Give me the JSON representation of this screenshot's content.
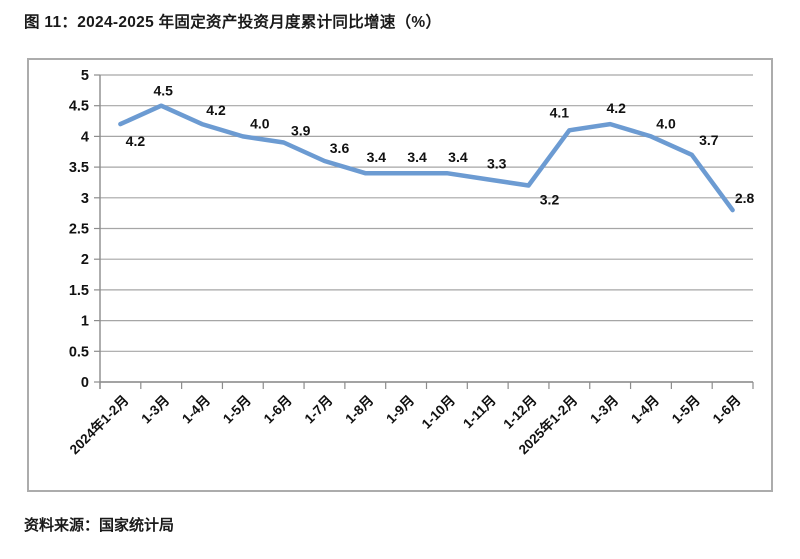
{
  "title": "图 11：2024-2025 年固定资产投资月度累计同比增速（%）",
  "source": "资料来源：国家统计局",
  "chart_data": {
    "type": "line",
    "title": "2024-2025 年固定资产投资月度累计同比增速（%）",
    "categories": [
      "2024年1-2月",
      "1-3月",
      "1-4月",
      "1-5月",
      "1-6月",
      "1-7月",
      "1-8月",
      "1-9月",
      "1-10月",
      "1-11月",
      "1-12月",
      "2025年1-2月",
      "1-3月",
      "1-4月",
      "1-5月",
      "1-6月"
    ],
    "values": [
      4.2,
      4.5,
      4.2,
      4.0,
      3.9,
      3.6,
      3.4,
      3.4,
      3.4,
      3.3,
      3.2,
      4.1,
      4.2,
      4.0,
      3.7,
      2.8
    ],
    "data_labels": [
      "4.2",
      "4.5",
      "4.2",
      "4.0",
      "3.9",
      "3.6",
      "3.4",
      "3.4",
      "3.4",
      "3.3",
      "3.2",
      "4.1",
      "4.2",
      "4.0",
      "3.7",
      "2.8"
    ],
    "xlabel": "",
    "ylabel": "",
    "ylim": [
      0,
      5
    ],
    "ytick_step": 0.5,
    "grid": true,
    "legend": "none",
    "colors": {
      "line": "#6c9bd2",
      "grid": "#a6a6a6",
      "axis": "#8c8c8c",
      "text": "#111111",
      "border": "#acacac"
    }
  }
}
